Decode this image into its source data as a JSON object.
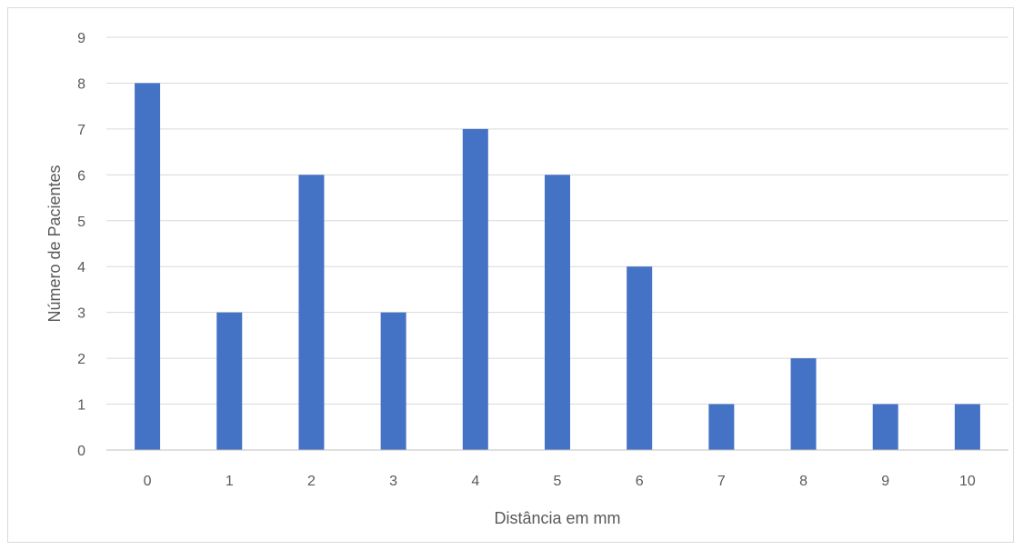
{
  "chart_data": {
    "type": "bar",
    "title": "",
    "xlabel": "Distância em mm",
    "ylabel": "Número de Pacientes",
    "categories": [
      "0",
      "1",
      "2",
      "3",
      "4",
      "5",
      "6",
      "7",
      "8",
      "9",
      "10"
    ],
    "values": [
      8,
      3,
      6,
      3,
      7,
      6,
      4,
      1,
      2,
      1,
      1
    ],
    "ylim": [
      0,
      9
    ],
    "yticks": [
      "0",
      "1",
      "2",
      "3",
      "4",
      "5",
      "6",
      "7",
      "8",
      "9"
    ],
    "grid": true,
    "legend": "none",
    "bar_color": "#4472c4",
    "grid_color": "#d9d9d9",
    "axis_color": "#bfbfbf"
  }
}
